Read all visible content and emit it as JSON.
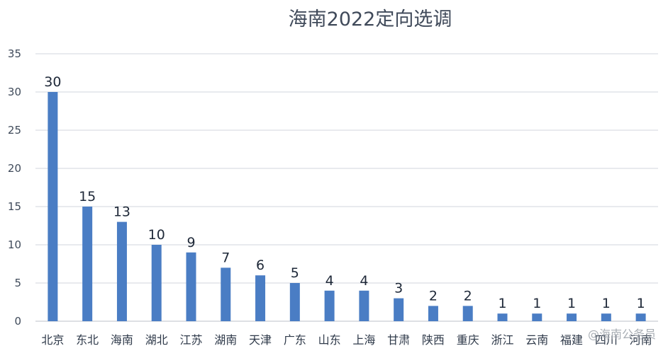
{
  "chart_data": {
    "type": "bar",
    "title": "海南2022定向选调",
    "categories": [
      "北京",
      "东北",
      "海南",
      "湖北",
      "江苏",
      "湖南",
      "天津",
      "广东",
      "山东",
      "上海",
      "甘肃",
      "陕西",
      "重庆",
      "浙江",
      "云南",
      "福建",
      "四川",
      "河南"
    ],
    "values": [
      30,
      15,
      13,
      10,
      9,
      7,
      6,
      5,
      4,
      4,
      3,
      2,
      2,
      1,
      1,
      1,
      1,
      1
    ],
    "ylim": [
      0,
      35
    ],
    "yticks": [
      0,
      5,
      10,
      15,
      20,
      25,
      30,
      35
    ],
    "grid": true,
    "bar_color": "#4a7dc4"
  },
  "watermark": "@海南公务员"
}
